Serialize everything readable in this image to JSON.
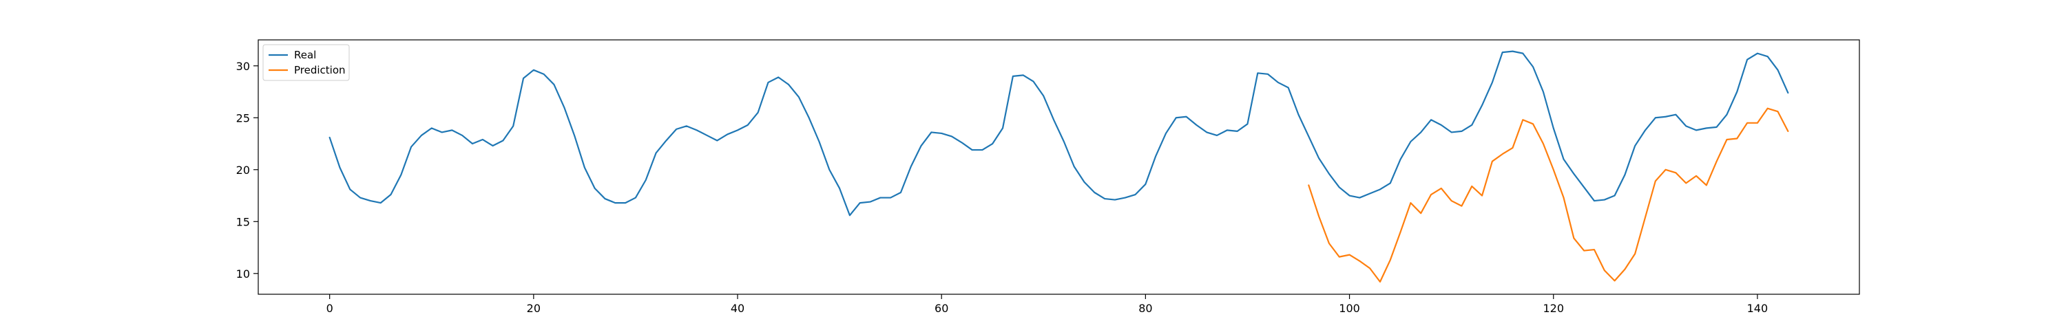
{
  "chart_data": {
    "type": "line",
    "title": "",
    "xlabel": "",
    "ylabel": "",
    "xlim": [
      -7,
      150
    ],
    "ylim": [
      8,
      32.5
    ],
    "xticks": [
      0,
      20,
      40,
      60,
      80,
      100,
      120,
      140
    ],
    "yticks": [
      10,
      15,
      20,
      25,
      30
    ],
    "grid": false,
    "legend_position": "top-left",
    "series": [
      {
        "name": "Real",
        "color": "#1f77b4",
        "x_start": 0,
        "values": [
          23.1,
          20.2,
          18.1,
          17.3,
          17.0,
          16.8,
          17.6,
          19.5,
          22.2,
          23.3,
          24.0,
          23.6,
          23.8,
          23.3,
          22.5,
          22.9,
          22.3,
          22.8,
          24.2,
          28.8,
          29.6,
          29.2,
          28.2,
          26.0,
          23.3,
          20.2,
          18.2,
          17.2,
          16.8,
          16.8,
          17.3,
          19.0,
          21.6,
          22.8,
          23.9,
          24.2,
          23.8,
          23.3,
          22.8,
          23.4,
          23.8,
          24.3,
          25.5,
          28.4,
          28.9,
          28.2,
          27.0,
          25.0,
          22.7,
          20.0,
          18.2,
          15.6,
          16.8,
          16.9,
          17.3,
          17.3,
          17.8,
          20.3,
          22.3,
          23.6,
          23.5,
          23.2,
          22.6,
          21.9,
          21.9,
          22.5,
          24.0,
          29.0,
          29.1,
          28.5,
          27.1,
          24.8,
          22.7,
          20.3,
          18.8,
          17.8,
          17.2,
          17.1,
          17.3,
          17.6,
          18.6,
          21.3,
          23.5,
          25.0,
          25.1,
          24.3,
          23.6,
          23.3,
          23.8,
          23.7,
          24.4,
          29.3,
          29.2,
          28.4,
          27.9,
          25.3,
          23.2,
          21.1,
          19.6,
          18.3,
          17.5,
          17.3,
          17.7,
          18.1,
          18.7,
          21.0,
          22.7,
          23.6,
          24.8,
          24.3,
          23.6,
          23.7,
          24.3,
          26.2,
          28.4,
          31.3,
          31.4,
          31.2,
          29.9,
          27.5,
          24.0,
          21.0,
          19.6,
          18.3,
          17.0,
          17.1,
          17.5,
          19.5,
          22.3,
          23.8,
          25.0,
          25.1,
          25.3,
          24.2,
          23.8,
          24.0,
          24.1,
          25.3,
          27.5,
          30.6,
          31.2,
          30.9,
          29.6,
          27.4
        ]
      },
      {
        "name": "Prediction",
        "color": "#ff7f0e",
        "x_start": 96,
        "values": [
          18.5,
          15.5,
          12.9,
          11.6,
          11.8,
          11.2,
          10.5,
          9.2,
          11.3,
          14.0,
          16.8,
          15.8,
          17.6,
          18.2,
          17.0,
          16.5,
          18.4,
          17.5,
          20.8,
          21.5,
          22.1,
          24.8,
          24.4,
          22.5,
          20.0,
          17.3,
          13.4,
          12.2,
          12.3,
          10.3,
          9.3,
          10.4,
          11.9,
          15.4,
          18.9,
          20.0,
          19.7,
          18.7,
          19.4,
          18.5,
          20.8,
          22.9,
          23.0,
          24.5,
          24.5,
          25.9,
          25.6,
          23.7
        ]
      }
    ]
  }
}
